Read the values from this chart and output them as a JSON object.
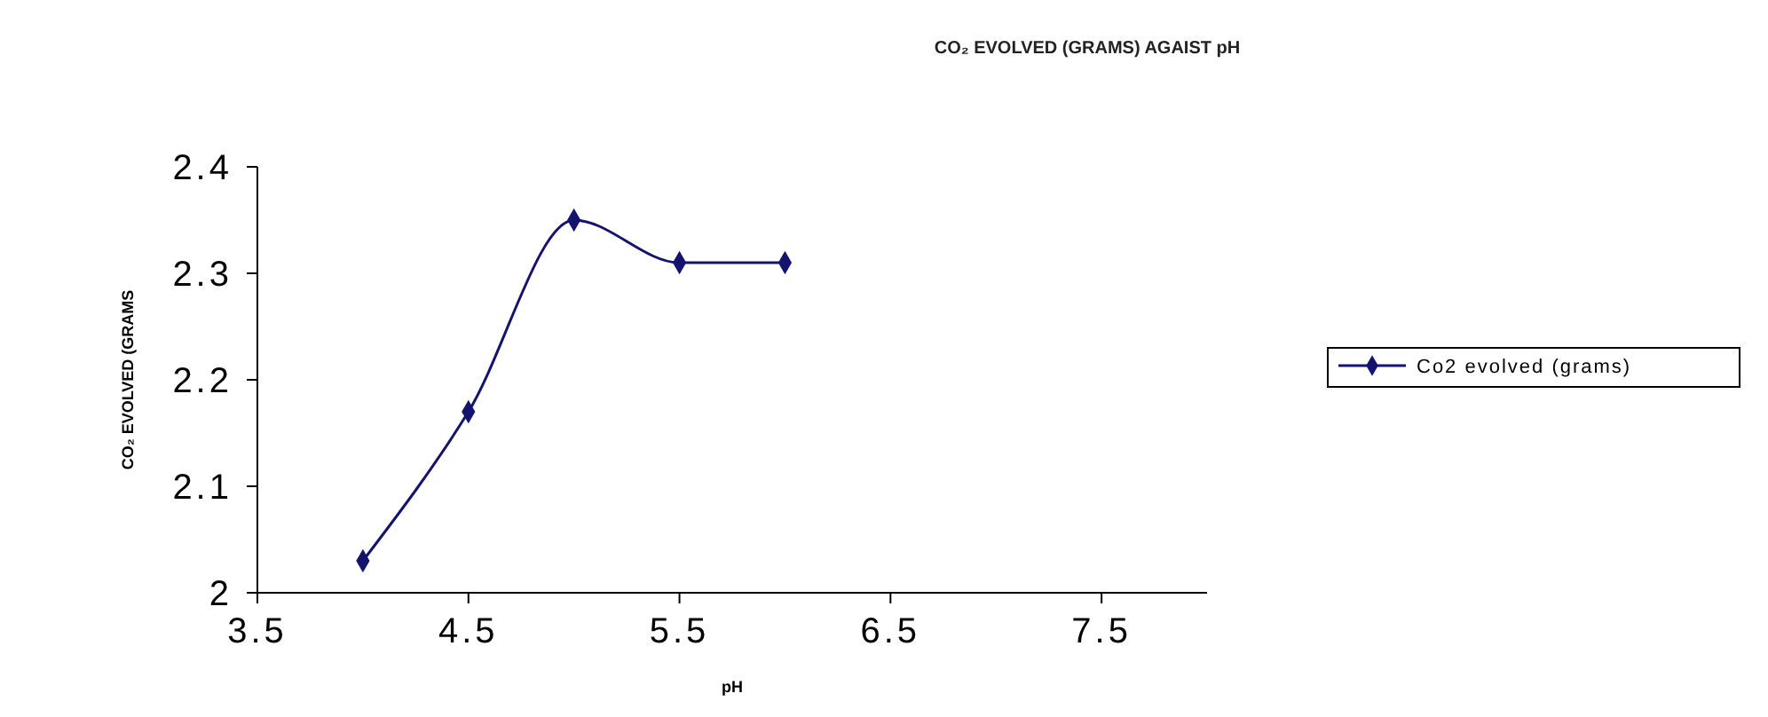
{
  "chart_data": {
    "type": "line",
    "title": "CO₂ EVOLVED (GRAMS) AGAIST pH",
    "xlabel": "pH",
    "ylabel": "CO₂ EVOLVED (GRAMS",
    "x": [
      4,
      4.5,
      5,
      5.5,
      6
    ],
    "series": [
      {
        "name": "Co2 evolved (grams)",
        "color": "#14146e",
        "values": [
          2.03,
          2.17,
          2.35,
          2.31,
          2.31
        ]
      }
    ],
    "xlim": [
      3.5,
      8
    ],
    "xticks": [
      3.5,
      4.5,
      5.5,
      6.5,
      7.5
    ],
    "ylim": [
      2,
      2.4
    ],
    "yticks": [
      2,
      2.1,
      2.2,
      2.3,
      2.4
    ],
    "marker": "diamond",
    "legend": "right",
    "grid": false
  }
}
